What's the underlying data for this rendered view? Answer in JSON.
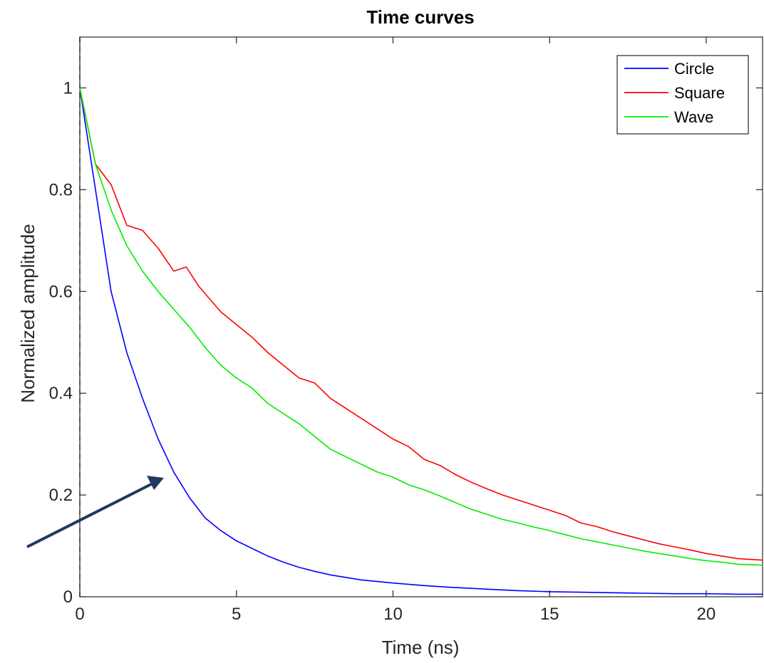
{
  "chart_data": {
    "type": "line",
    "title": "Time curves",
    "xlabel": "Time (ns)",
    "ylabel": "Normalized amplitude",
    "xlim": [
      0,
      21.8
    ],
    "ylim": [
      0,
      1.1
    ],
    "xticks": [
      0,
      5,
      10,
      15,
      20
    ],
    "yticks": [
      0,
      0.2,
      0.4,
      0.6,
      0.8,
      1
    ],
    "xtick_labels": [
      "0",
      "5",
      "10",
      "15",
      "20"
    ],
    "ytick_labels": [
      "0",
      "0.2",
      "0.4",
      "0.6",
      "0.8",
      "1"
    ],
    "grid": false,
    "legend_position": "top-right",
    "annotation": "arrow pointing to the Circle curve",
    "series": [
      {
        "name": "Circle",
        "color": "#0000ff",
        "x": [
          0,
          0.5,
          1,
          1.5,
          2,
          2.5,
          3,
          3.5,
          4,
          4.5,
          5,
          5.5,
          6,
          6.5,
          7,
          7.5,
          8,
          9,
          10,
          11,
          12,
          13,
          14,
          15,
          16,
          17,
          18,
          19,
          20,
          21,
          21.8
        ],
        "values": [
          1.0,
          0.8,
          0.6,
          0.48,
          0.39,
          0.31,
          0.245,
          0.195,
          0.155,
          0.13,
          0.11,
          0.095,
          0.08,
          0.068,
          0.058,
          0.05,
          0.043,
          0.033,
          0.027,
          0.022,
          0.018,
          0.015,
          0.012,
          0.01,
          0.009,
          0.008,
          0.007,
          0.006,
          0.006,
          0.005,
          0.005
        ]
      },
      {
        "name": "Square",
        "color": "#ff0000",
        "x": [
          0,
          0.5,
          1,
          1.5,
          2,
          2.5,
          3,
          3.4,
          3.8,
          4.5,
          5,
          5.5,
          6,
          6.5,
          7,
          7.5,
          8,
          8.5,
          9,
          9.5,
          10,
          10.5,
          11,
          11.5,
          12,
          12.5,
          13,
          13.5,
          14,
          14.5,
          15,
          15.5,
          16,
          16.5,
          17,
          17.5,
          18,
          18.5,
          19,
          19.5,
          20,
          20.5,
          21,
          21.8
        ],
        "values": [
          1.0,
          0.85,
          0.81,
          0.73,
          0.72,
          0.685,
          0.64,
          0.648,
          0.61,
          0.56,
          0.535,
          0.51,
          0.48,
          0.455,
          0.43,
          0.42,
          0.39,
          0.37,
          0.35,
          0.33,
          0.31,
          0.295,
          0.27,
          0.258,
          0.24,
          0.225,
          0.212,
          0.2,
          0.19,
          0.18,
          0.17,
          0.16,
          0.145,
          0.138,
          0.128,
          0.12,
          0.112,
          0.104,
          0.098,
          0.092,
          0.085,
          0.08,
          0.075,
          0.072
        ]
      },
      {
        "name": "Wave",
        "color": "#00ee00",
        "x": [
          0,
          0.5,
          1,
          1.5,
          2,
          2.5,
          3,
          3.5,
          4,
          4.5,
          5,
          5.5,
          6,
          6.5,
          7,
          7.5,
          8,
          8.5,
          9,
          9.5,
          10,
          10.5,
          11,
          11.5,
          12,
          12.5,
          13,
          13.5,
          14,
          14.5,
          15,
          15.5,
          16,
          16.5,
          17,
          17.5,
          18,
          18.5,
          19,
          19.5,
          20,
          20.5,
          21,
          21.8
        ],
        "values": [
          1.0,
          0.85,
          0.76,
          0.69,
          0.64,
          0.6,
          0.565,
          0.53,
          0.49,
          0.455,
          0.43,
          0.41,
          0.38,
          0.36,
          0.34,
          0.315,
          0.29,
          0.275,
          0.26,
          0.245,
          0.235,
          0.22,
          0.21,
          0.198,
          0.185,
          0.172,
          0.162,
          0.152,
          0.145,
          0.137,
          0.13,
          0.122,
          0.114,
          0.108,
          0.102,
          0.096,
          0.09,
          0.085,
          0.08,
          0.075,
          0.071,
          0.068,
          0.064,
          0.062
        ]
      }
    ]
  }
}
